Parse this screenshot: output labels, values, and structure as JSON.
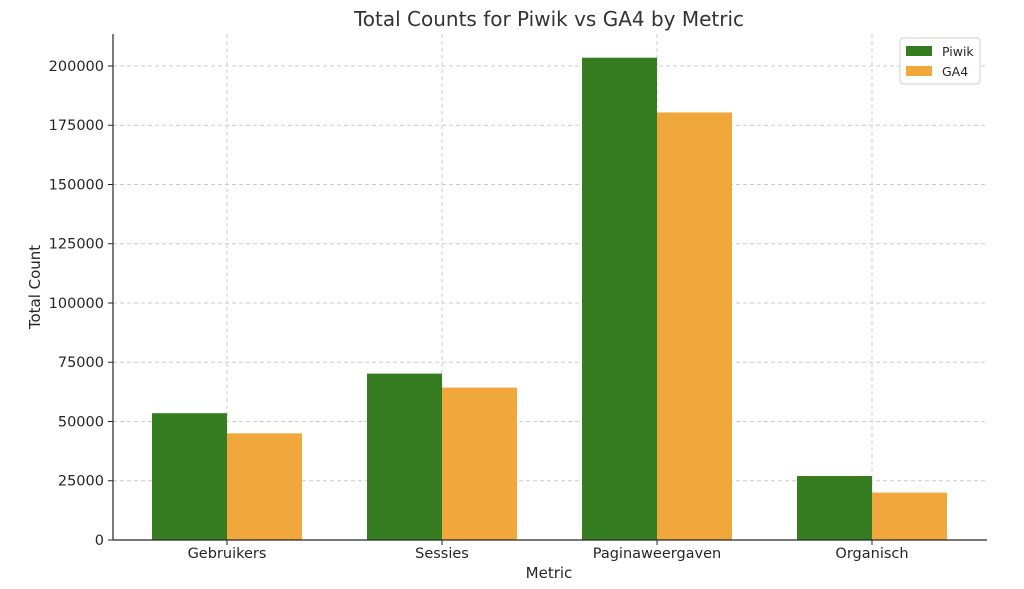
{
  "chart_data": {
    "type": "bar",
    "title": "Total Counts for Piwik vs GA4 by Metric",
    "xlabel": "Metric",
    "ylabel": "Total Count",
    "categories": [
      "Gebruikers",
      "Sessies",
      "Paginaweergaven",
      "Organisch"
    ],
    "series": [
      {
        "name": "Piwik",
        "color": "#367c21",
        "values": [
          53500,
          70200,
          203500,
          27000
        ]
      },
      {
        "name": "GA4",
        "color": "#f0a83c",
        "values": [
          45000,
          64300,
          180400,
          20000
        ]
      }
    ],
    "ylim": [
      0,
      213500
    ],
    "yticks": [
      0,
      25000,
      50000,
      75000,
      100000,
      125000,
      150000,
      175000,
      200000
    ],
    "grid": true,
    "legend_position": "top-right"
  }
}
